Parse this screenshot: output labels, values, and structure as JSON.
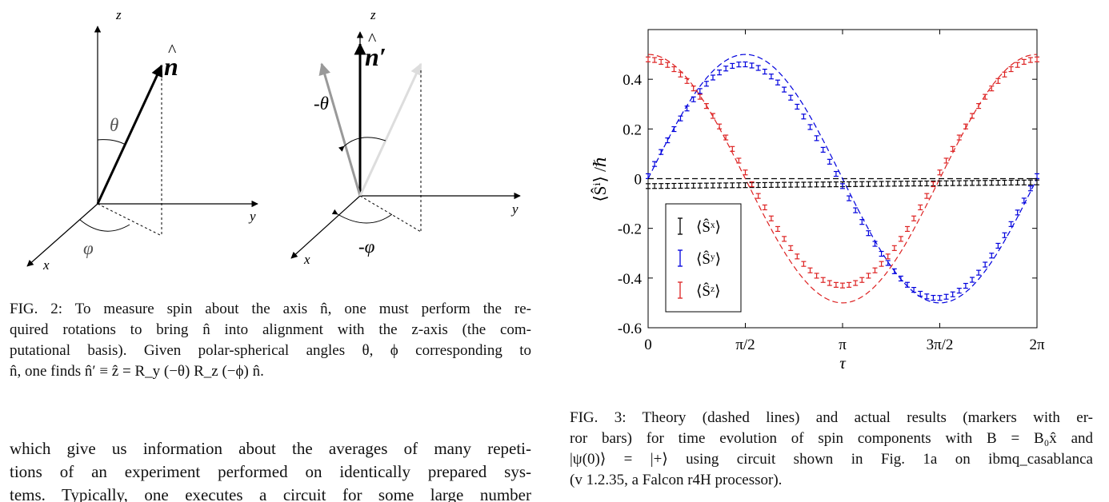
{
  "fig2": {
    "left_panel": {
      "x_label": "x",
      "y_label": "y",
      "z_label": "z",
      "n_label": "n",
      "theta_label": "θ",
      "phi_label": "φ"
    },
    "right_panel": {
      "x_label": "x",
      "y_label": "y",
      "z_label": "z",
      "nprime_label": "n′",
      "neg_theta_label": "-θ",
      "neg_phi_label": "-φ"
    },
    "caption_lines": [
      "FIG. 2: To measure spin about the axis n̂, one must perform the re-",
      "quired rotations to bring n̂ into alignment with the z-axis (the com-",
      "putational basis). Given polar-spherical angles θ, ϕ corresponding to",
      "n̂, one finds n̂′ ≡ ẑ = R_y (−θ) R_z (−ϕ) n̂."
    ]
  },
  "body_lines": [
    "which give us information about the averages of many repeti-",
    "tions of an experiment performed on identically prepared sys-",
    "tems. Typically, one executes a circuit for some large number"
  ],
  "fig3": {
    "caption_lines": [
      "FIG. 3: Theory (dashed lines) and actual results (markers with er-",
      "ror bars) for time evolution of spin components with B = B₀x̂ and",
      "|ψ(0)⟩ = |+⟩ using circuit shown in Fig. 1a on ibmq_casablanca",
      "(v 1.2.35, a Falcon r4H processor)."
    ]
  },
  "chart_data": {
    "type": "line",
    "xlabel": "τ",
    "ylabel": "⟨Ŝⁱ⟩ /ℏ",
    "xlim": [
      0,
      6.2832
    ],
    "ylim": [
      -0.6,
      0.6
    ],
    "x_ticks": [
      {
        "value": 0,
        "label": "0"
      },
      {
        "value": 1.5708,
        "label": "π/2"
      },
      {
        "value": 3.1416,
        "label": "π"
      },
      {
        "value": 4.7124,
        "label": "3π/2"
      },
      {
        "value": 6.2832,
        "label": "2π"
      }
    ],
    "y_ticks": [
      {
        "value": 0.4,
        "label": "0.4"
      },
      {
        "value": 0.2,
        "label": "0.2"
      },
      {
        "value": 0,
        "label": "0"
      },
      {
        "value": -0.2,
        "label": "-0.2"
      },
      {
        "value": -0.4,
        "label": "-0.4"
      },
      {
        "value": -0.6,
        "label": "-0.6"
      }
    ],
    "legend_position": "lower-left",
    "series": [
      {
        "name": "⟨Ŝˣ⟩",
        "color": "#000000",
        "theory": "constant 0",
        "measured": {
          "x_start": 0,
          "x_end": 6.2832,
          "points": 61,
          "values_desc": "approximately -0.03 to -0.01 rising slowly"
        },
        "theory_values": {
          "x": [
            0,
            6.2832
          ],
          "y": [
            0,
            0
          ]
        },
        "data_values": {
          "x": [
            0,
            1.5708,
            3.1416,
            4.7124,
            6.2832
          ],
          "y": [
            -0.03,
            -0.025,
            -0.02,
            -0.015,
            -0.015
          ]
        }
      },
      {
        "name": "⟨Ŝʸ⟩",
        "color": "#0000dd",
        "theory_values": {
          "x": [
            0,
            1.5708,
            3.1416,
            4.7124,
            6.2832
          ],
          "y": [
            0,
            0.5,
            0,
            -0.5,
            0
          ]
        },
        "data_values": {
          "x": [
            0,
            1.5708,
            3.1416,
            4.7124,
            6.2832
          ],
          "y": [
            0.01,
            0.49,
            -0.02,
            -0.45,
            0.0
          ]
        }
      },
      {
        "name": "⟨Ŝᶻ⟩",
        "color": "#dd2222",
        "theory_values": {
          "x": [
            0,
            1.5708,
            3.1416,
            4.7124,
            6.2832
          ],
          "y": [
            0.5,
            0,
            -0.5,
            0,
            0.5
          ]
        },
        "data_values": {
          "x": [
            0,
            1.5708,
            3.1416,
            4.7124,
            6.2832
          ],
          "y": [
            0.48,
            -0.02,
            -0.43,
            -0.01,
            0.48
          ]
        }
      }
    ]
  }
}
